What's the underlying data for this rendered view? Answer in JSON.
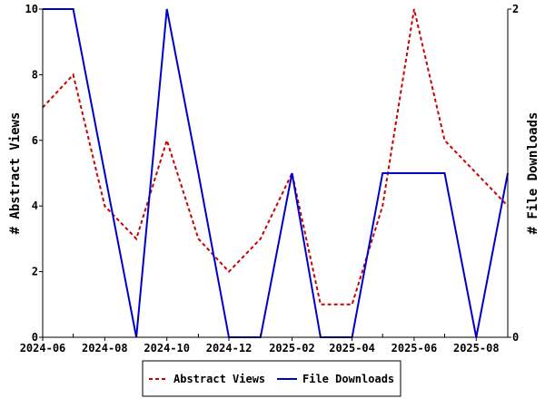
{
  "chart_data": {
    "type": "line",
    "x": [
      "2024-06",
      "2024-07",
      "2024-08",
      "2024-09",
      "2024-10",
      "2024-11",
      "2024-12",
      "2025-01",
      "2025-02",
      "2025-03",
      "2025-04",
      "2025-05",
      "2025-06",
      "2025-07",
      "2025-08",
      "2025-09"
    ],
    "x_tick_labels": [
      "2024-06",
      "2024-08",
      "2024-10",
      "2024-12",
      "2025-02",
      "2025-04",
      "2025-06",
      "2025-08"
    ],
    "ylabel": "# Abstract Views",
    "y2label": "# File Downloads",
    "ylim": [
      0,
      10
    ],
    "y2lim": [
      0,
      2
    ],
    "y_ticks": [
      "0",
      "2",
      "4",
      "6",
      "8",
      "10"
    ],
    "y2_ticks": [
      "0",
      "2"
    ],
    "legend_position": "bottom",
    "series": [
      {
        "name": "Abstract Views",
        "axis": "left",
        "color": "#cc0000",
        "style": "dashed",
        "values": [
          7,
          8,
          4,
          3,
          6,
          3,
          2,
          3,
          5,
          1,
          1,
          4,
          10,
          6,
          5,
          4
        ]
      },
      {
        "name": "File Downloads",
        "axis": "right",
        "color": "#0000cc",
        "style": "solid",
        "values": [
          2,
          2,
          1,
          0,
          2,
          1,
          0,
          0,
          1,
          0,
          0,
          1,
          1,
          1,
          0,
          1
        ]
      }
    ]
  }
}
